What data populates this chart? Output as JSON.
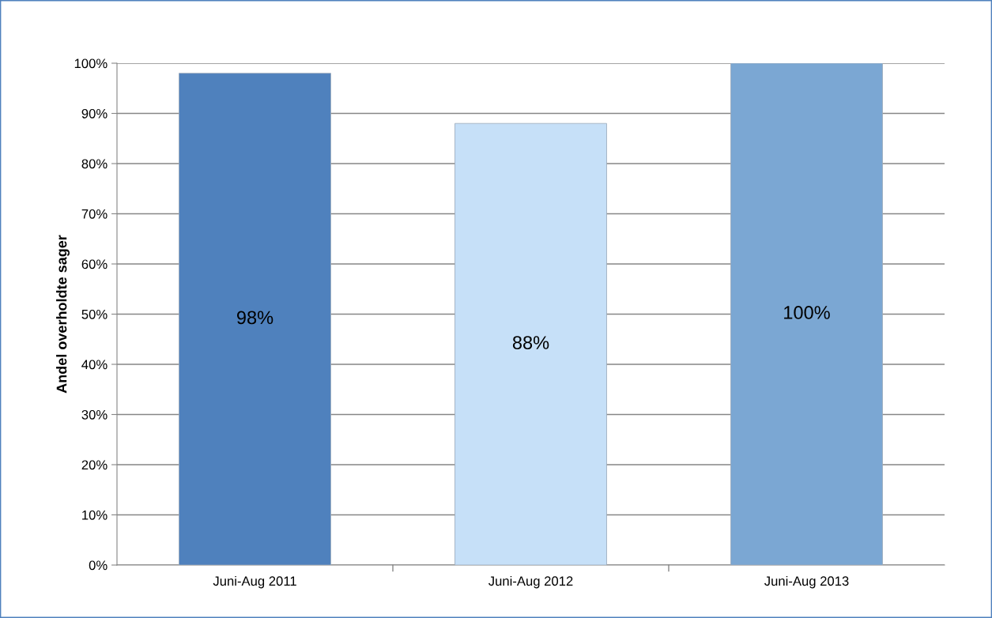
{
  "chart_data": {
    "type": "bar",
    "ylabel": "Andel overholdte sager",
    "categories": [
      "Juni-Aug 2011",
      "Juni-Aug 2012",
      "Juni-Aug 2013"
    ],
    "values": [
      98,
      88,
      100
    ],
    "colors": [
      "#4f81bd",
      "#c6e0f8",
      "#7ba7d3"
    ],
    "value_labels": [
      "98%",
      "88%",
      "100%"
    ],
    "ylim": [
      0,
      100
    ],
    "yticks": [
      {
        "value": 0,
        "label": "0%"
      },
      {
        "value": 10,
        "label": "10%"
      },
      {
        "value": 20,
        "label": "20%"
      },
      {
        "value": 30,
        "label": "30%"
      },
      {
        "value": 40,
        "label": "40%"
      },
      {
        "value": 50,
        "label": "50%"
      },
      {
        "value": 60,
        "label": "60%"
      },
      {
        "value": 70,
        "label": "70%"
      },
      {
        "value": 80,
        "label": "80%"
      },
      {
        "value": 90,
        "label": "90%"
      },
      {
        "value": 100,
        "label": "100%"
      }
    ],
    "grid": "y",
    "legend": false
  }
}
